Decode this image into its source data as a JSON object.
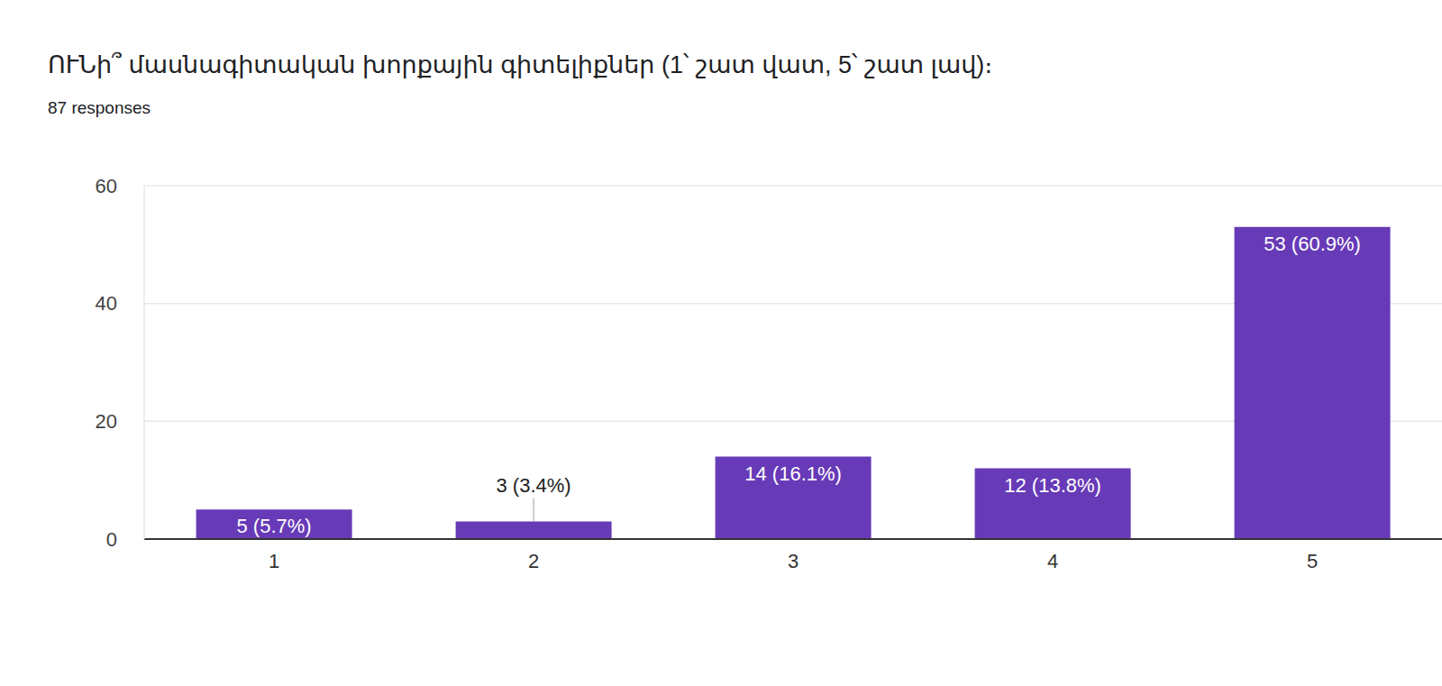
{
  "chart_data": {
    "type": "bar",
    "title": "ՈՒՆի՞ մասնագիտական խորքային գիտելիքներ (1՝ շատ վատ, 5՝ շատ լավ)։",
    "subtitle": "87 responses",
    "categories": [
      "1",
      "2",
      "3",
      "4",
      "5"
    ],
    "values": [
      5,
      3,
      14,
      12,
      53
    ],
    "value_labels": [
      "5 (5.7%)",
      "3 (3.4%)",
      "14 (16.1%)",
      "12 (13.8%)",
      "53 (60.9%)"
    ],
    "color": "#673ab7",
    "ylim": [
      0,
      60
    ],
    "yticks": [
      0,
      20,
      40,
      60
    ],
    "grid": true,
    "data_labels": true
  }
}
